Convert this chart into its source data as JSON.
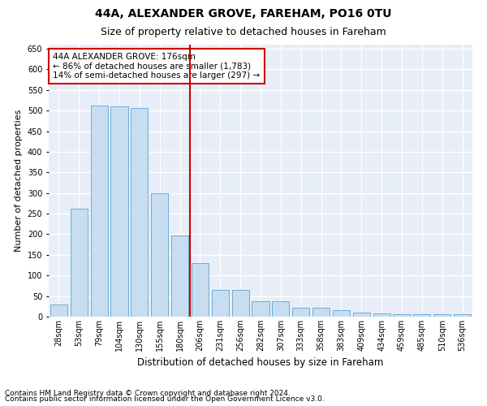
{
  "title1": "44A, ALEXANDER GROVE, FAREHAM, PO16 0TU",
  "title2": "Size of property relative to detached houses in Fareham",
  "xlabel": "Distribution of detached houses by size in Fareham",
  "ylabel": "Number of detached properties",
  "categories": [
    "28sqm",
    "53sqm",
    "79sqm",
    "104sqm",
    "130sqm",
    "155sqm",
    "180sqm",
    "206sqm",
    "231sqm",
    "256sqm",
    "282sqm",
    "307sqm",
    "333sqm",
    "358sqm",
    "383sqm",
    "409sqm",
    "434sqm",
    "459sqm",
    "485sqm",
    "510sqm",
    "536sqm"
  ],
  "values": [
    30,
    263,
    512,
    510,
    507,
    300,
    197,
    130,
    65,
    65,
    37,
    37,
    22,
    22,
    15,
    10,
    8,
    5,
    5,
    5,
    5
  ],
  "bar_color": "#c8ddf0",
  "bar_edge_color": "#6baed6",
  "vline_x_index": 6,
  "vline_color": "#cc0000",
  "annotation_text": "44A ALEXANDER GROVE: 176sqm\n← 86% of detached houses are smaller (1,783)\n14% of semi-detached houses are larger (297) →",
  "annotation_box_color": "#ffffff",
  "annotation_box_edge": "#cc0000",
  "ylim": [
    0,
    660
  ],
  "yticks": [
    0,
    50,
    100,
    150,
    200,
    250,
    300,
    350,
    400,
    450,
    500,
    550,
    600,
    650
  ],
  "footer1": "Contains HM Land Registry data © Crown copyright and database right 2024.",
  "footer2": "Contains public sector information licensed under the Open Government Licence v3.0.",
  "plot_bg_color": "#e8eef8",
  "fig_bg_color": "#ffffff",
  "grid_color": "#ffffff",
  "title1_fontsize": 10,
  "title2_fontsize": 9,
  "ylabel_fontsize": 8,
  "xlabel_fontsize": 8.5,
  "tick_fontsize": 7,
  "annotation_fontsize": 7.5,
  "footer_fontsize": 6.5
}
